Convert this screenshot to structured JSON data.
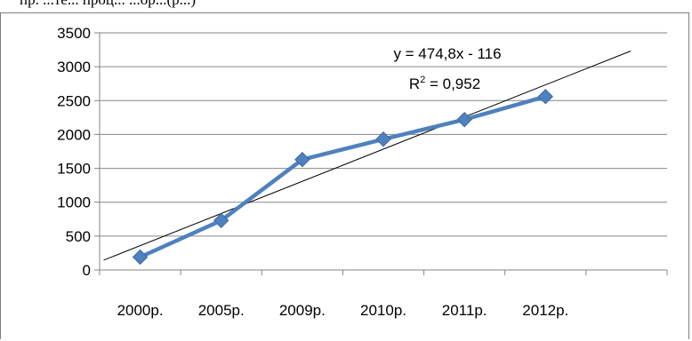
{
  "page": {
    "cut_text": "пр. ...те... проц... ...ор...(р...)"
  },
  "chart_data": {
    "type": "line",
    "categories": [
      "2000р.",
      "2005р.",
      "2009р.",
      "2010р.",
      "2011р.",
      "2012р."
    ],
    "series": [
      {
        "values": [
          190,
          730,
          1630,
          1930,
          2220,
          2560
        ],
        "color": "#4f81bd",
        "marker": "diamond"
      }
    ],
    "trendline": {
      "type": "linear",
      "slope": 474.8,
      "intercept": -116,
      "x_start": 0.55,
      "x_end": 7.05,
      "color": "#000000"
    },
    "annotations": {
      "equation": "y = 474,8x - 116",
      "r_squared_label": "R",
      "r_squared_sup": "2",
      "r_squared_value": " = 0,952"
    },
    "yticks": [
      "0",
      "500",
      "1000",
      "1500",
      "2000",
      "2500",
      "3000",
      "3500"
    ],
    "ylim": [
      0,
      3500
    ],
    "grid": true,
    "legend": "none",
    "title": "",
    "xlabel": "",
    "ylabel": ""
  }
}
